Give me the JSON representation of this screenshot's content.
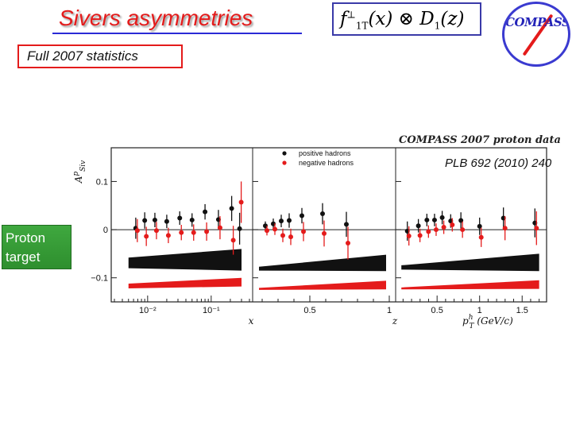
{
  "slide": {
    "title": "Sivers asymmetries",
    "formula": {
      "f": "f",
      "f_sup": "⊥",
      "f_sub": "1T",
      "mid": "(x) ⊗ D",
      "d_sub": "1",
      "end": "(z)"
    },
    "stats_label": "Full 2007 statistics",
    "logo_text": "COMPASS",
    "reference": "PLB 692 (2010) 240",
    "target_label_line1": "Proton",
    "target_label_line2": "target"
  },
  "chart_data": {
    "type": "scatter",
    "header": "COMPASS 2007 proton data",
    "ylabel": "A^p_Siv",
    "ylim": [
      -0.15,
      0.17
    ],
    "y_ticks": [
      {
        "value": 0.1,
        "label": "0.1"
      },
      {
        "value": 0,
        "label": "0"
      },
      {
        "value": -0.1,
        "label": "−0.1"
      }
    ],
    "legend": {
      "placement": "top-left",
      "entries": [
        {
          "name": "positive hadrons",
          "color": "#111111"
        },
        {
          "name": "negative hadrons",
          "color": "#e41b1b"
        }
      ]
    },
    "colors": {
      "positive": "#111111",
      "negative": "#e41b1b",
      "band_pos": "#111111",
      "band_neg": "#e41b1b"
    },
    "panels": [
      {
        "xlabel": "x",
        "xscale": "log",
        "xlim": [
          0.003,
          0.4
        ],
        "x_ticks": [
          {
            "value": 0.01,
            "label": "10⁻²"
          },
          {
            "value": 0.1,
            "label": "10⁻¹"
          }
        ],
        "positive": [
          {
            "x": 0.0065,
            "y": 0.003,
            "err": 0.022
          },
          {
            "x": 0.009,
            "y": 0.019,
            "err": 0.017
          },
          {
            "x": 0.013,
            "y": 0.02,
            "err": 0.015
          },
          {
            "x": 0.02,
            "y": 0.017,
            "err": 0.014
          },
          {
            "x": 0.032,
            "y": 0.024,
            "err": 0.014
          },
          {
            "x": 0.05,
            "y": 0.02,
            "err": 0.014
          },
          {
            "x": 0.08,
            "y": 0.037,
            "err": 0.016
          },
          {
            "x": 0.13,
            "y": 0.021,
            "err": 0.02
          },
          {
            "x": 0.21,
            "y": 0.044,
            "err": 0.026
          },
          {
            "x": 0.28,
            "y": 0.002,
            "err": 0.033
          }
        ],
        "negative": [
          {
            "x": 0.0065,
            "y": -0.002,
            "err": 0.024
          },
          {
            "x": 0.009,
            "y": -0.014,
            "err": 0.02
          },
          {
            "x": 0.013,
            "y": -0.002,
            "err": 0.018
          },
          {
            "x": 0.02,
            "y": -0.012,
            "err": 0.016
          },
          {
            "x": 0.032,
            "y": -0.006,
            "err": 0.016
          },
          {
            "x": 0.05,
            "y": -0.006,
            "err": 0.017
          },
          {
            "x": 0.08,
            "y": -0.004,
            "err": 0.019
          },
          {
            "x": 0.13,
            "y": 0.004,
            "err": 0.024
          },
          {
            "x": 0.21,
            "y": -0.022,
            "err": 0.03
          },
          {
            "x": 0.28,
            "y": 0.057,
            "err": 0.043
          }
        ],
        "band_pos": {
          "x": [
            0.005,
            0.3
          ],
          "low": [
            -0.08,
            -0.085
          ],
          "high": [
            -0.058,
            -0.04
          ]
        },
        "band_neg": {
          "x": [
            0.005,
            0.3
          ],
          "low": [
            -0.122,
            -0.118
          ],
          "high": [
            -0.112,
            -0.1
          ]
        }
      },
      {
        "xlabel": "z",
        "xscale": "linear",
        "xlim": [
          0.16,
          1.02
        ],
        "x_ticks": [
          {
            "value": 0.5,
            "label": "0.5"
          },
          {
            "value": 1,
            "label": "1"
          }
        ],
        "positive": [
          {
            "x": 0.22,
            "y": 0.008,
            "err": 0.009
          },
          {
            "x": 0.27,
            "y": 0.012,
            "err": 0.011
          },
          {
            "x": 0.32,
            "y": 0.018,
            "err": 0.013
          },
          {
            "x": 0.37,
            "y": 0.019,
            "err": 0.015
          },
          {
            "x": 0.45,
            "y": 0.029,
            "err": 0.016
          },
          {
            "x": 0.58,
            "y": 0.033,
            "err": 0.022
          },
          {
            "x": 0.73,
            "y": 0.011,
            "err": 0.026
          }
        ],
        "negative": [
          {
            "x": 0.22,
            "y": -0.002,
            "err": 0.01
          },
          {
            "x": 0.27,
            "y": 0.001,
            "err": 0.012
          },
          {
            "x": 0.32,
            "y": -0.012,
            "err": 0.014
          },
          {
            "x": 0.37,
            "y": -0.015,
            "err": 0.017
          },
          {
            "x": 0.45,
            "y": -0.004,
            "err": 0.02
          },
          {
            "x": 0.58,
            "y": -0.008,
            "err": 0.027
          },
          {
            "x": 0.73,
            "y": -0.028,
            "err": 0.034
          }
        ],
        "band_pos": {
          "x": [
            0.18,
            0.98
          ],
          "low": [
            -0.085,
            -0.086
          ],
          "high": [
            -0.077,
            -0.052
          ]
        },
        "band_neg": {
          "x": [
            0.18,
            0.98
          ],
          "low": [
            -0.125,
            -0.124
          ],
          "high": [
            -0.121,
            -0.106
          ]
        }
      },
      {
        "xlabel": "p^h_T (GeV/c)",
        "xscale": "linear",
        "xlim": [
          0.05,
          1.75
        ],
        "x_ticks": [
          {
            "value": 0.5,
            "label": "0.5"
          },
          {
            "value": 1,
            "label": "1"
          },
          {
            "value": 1.5,
            "label": "1.5"
          }
        ],
        "positive": [
          {
            "x": 0.15,
            "y": -0.003,
            "err": 0.02
          },
          {
            "x": 0.28,
            "y": 0.008,
            "err": 0.014
          },
          {
            "x": 0.38,
            "y": 0.02,
            "err": 0.013
          },
          {
            "x": 0.47,
            "y": 0.02,
            "err": 0.013
          },
          {
            "x": 0.56,
            "y": 0.025,
            "err": 0.014
          },
          {
            "x": 0.66,
            "y": 0.018,
            "err": 0.014
          },
          {
            "x": 0.78,
            "y": 0.019,
            "err": 0.017
          },
          {
            "x": 1.0,
            "y": 0.007,
            "err": 0.018
          },
          {
            "x": 1.28,
            "y": 0.024,
            "err": 0.022
          },
          {
            "x": 1.65,
            "y": 0.014,
            "err": 0.03
          }
        ],
        "negative": [
          {
            "x": 0.15,
            "y": -0.013,
            "err": 0.02
          },
          {
            "x": 0.28,
            "y": -0.012,
            "err": 0.014
          },
          {
            "x": 0.38,
            "y": -0.004,
            "err": 0.013
          },
          {
            "x": 0.47,
            "y": 0.0,
            "err": 0.013
          },
          {
            "x": 0.56,
            "y": 0.005,
            "err": 0.014
          },
          {
            "x": 0.66,
            "y": 0.01,
            "err": 0.014
          },
          {
            "x": 0.78,
            "y": 0.0,
            "err": 0.017
          },
          {
            "x": 1.0,
            "y": -0.016,
            "err": 0.02
          },
          {
            "x": 1.28,
            "y": 0.003,
            "err": 0.025
          },
          {
            "x": 1.65,
            "y": 0.003,
            "err": 0.035
          }
        ],
        "band_pos": {
          "x": [
            0.08,
            1.7
          ],
          "low": [
            -0.083,
            -0.086
          ],
          "high": [
            -0.074,
            -0.05
          ]
        },
        "band_neg": {
          "x": [
            0.08,
            1.7
          ],
          "low": [
            -0.124,
            -0.123
          ],
          "high": [
            -0.12,
            -0.105
          ]
        }
      }
    ]
  }
}
